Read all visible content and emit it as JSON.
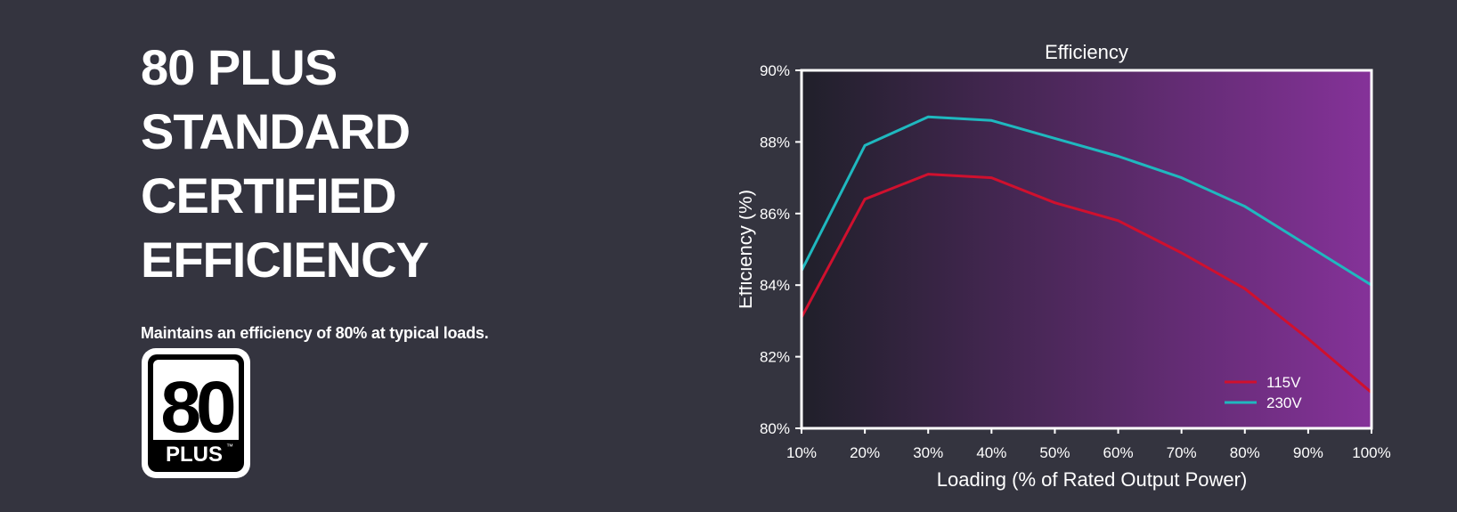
{
  "heading": {
    "lines": [
      "80 PLUS",
      "STANDARD",
      "CERTIFIED",
      "EFFICIENCY"
    ]
  },
  "subtitle": "Maintains an efficiency of 80% at typical loads.",
  "logo": {
    "number": "80",
    "word": "PLUS",
    "trademark": "™"
  },
  "colors": {
    "background": "#34343f",
    "series_115v": "#d0102e",
    "series_230v": "#1fb8bf",
    "gradient_start": "#20202a",
    "gradient_end": "#853299"
  },
  "chart_data": {
    "type": "line",
    "title": "Efficiency",
    "xlabel": "Loading (% of Rated Output Power)",
    "ylabel": "Efficiency (%)",
    "x": [
      10,
      20,
      30,
      40,
      50,
      60,
      70,
      80,
      90,
      100
    ],
    "xticks": [
      "10%",
      "20%",
      "30%",
      "40%",
      "50%",
      "60%",
      "70%",
      "80%",
      "90%",
      "100%"
    ],
    "yticks": [
      "80%",
      "82%",
      "84%",
      "86%",
      "88%",
      "90%"
    ],
    "xlim": [
      10,
      100
    ],
    "ylim": [
      80,
      90
    ],
    "grid": false,
    "legend_position": "bottom-right",
    "series": [
      {
        "name": "115V",
        "color": "#d0102e",
        "values": [
          83.1,
          86.4,
          87.1,
          87.0,
          86.3,
          85.8,
          84.9,
          83.9,
          82.5,
          81.0
        ]
      },
      {
        "name": "230V",
        "color": "#1fb8bf",
        "values": [
          84.4,
          87.9,
          88.7,
          88.6,
          88.1,
          87.6,
          87.0,
          86.2,
          85.1,
          84.0
        ]
      }
    ]
  }
}
